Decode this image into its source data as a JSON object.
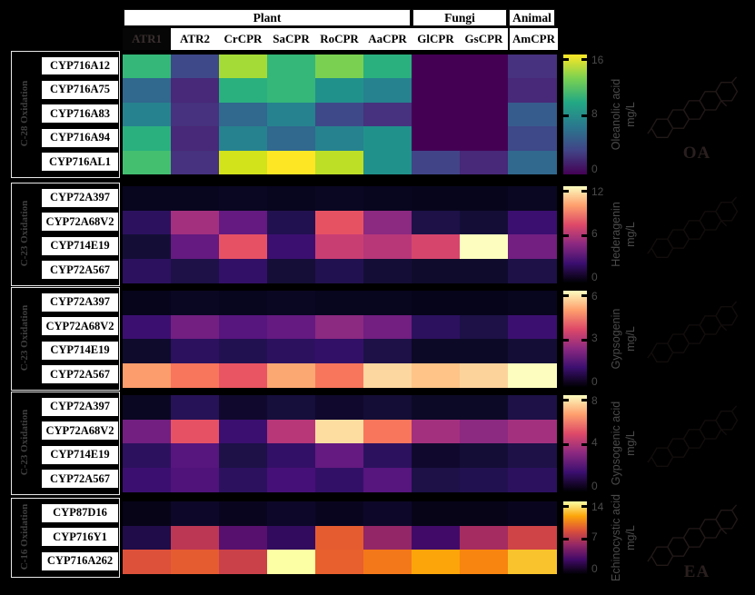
{
  "figure": {
    "header": {
      "groups": [
        {
          "label": "Plant",
          "span": 6
        },
        {
          "label": "Fungi",
          "span": 2
        },
        {
          "label": "Animal",
          "span": 1
        }
      ],
      "columns": [
        "ATR1",
        "ATR2",
        "CrCPR",
        "SaCPR",
        "RoCPR",
        "AaCPR",
        "GlCPR",
        "GsCPR",
        "AmCPR"
      ],
      "highlighted_column": "ATR1"
    },
    "colormap_gradients": {
      "viridis": [
        "#fde725",
        "#7ad151",
        "#22a884",
        "#2a788e",
        "#414487",
        "#440154"
      ],
      "magma": [
        "#fcfdbf",
        "#fe9f6d",
        "#de4968",
        "#8c2981",
        "#3b0f70",
        "#000004"
      ],
      "inferno": [
        "#fcffa4",
        "#fca50a",
        "#dd513a",
        "#932667",
        "#420a68",
        "#000004"
      ]
    }
  },
  "chart_data": [
    {
      "type": "heatmap",
      "oxidation_label": "C-28 Oxidation",
      "product": "Oleanolic acid",
      "unit": "mg/L",
      "colormap": "viridis",
      "scale_min": 0,
      "scale_max": 16,
      "ticks": [
        "16",
        "8",
        "0"
      ],
      "structure_label": "OA",
      "columns": [
        "ATR1",
        "ATR2",
        "CrCPR",
        "SaCPR",
        "RoCPR",
        "AaCPR",
        "GlCPR",
        "GsCPR",
        "AmCPR"
      ],
      "rows": [
        "CYP716A12",
        "CYP716A75",
        "CYP716A83",
        "CYP716A94",
        "CYP716AL1"
      ],
      "values": [
        [
          10,
          3.2,
          13.3,
          10,
          12,
          9.3,
          0.2,
          0.2,
          2
        ],
        [
          4.8,
          1.6,
          9.3,
          10,
          8,
          6.4,
          0.2,
          0.2,
          1.6
        ],
        [
          6.4,
          2,
          4.8,
          6.4,
          3.2,
          2,
          0.2,
          0.2,
          4.3
        ],
        [
          9.3,
          1.6,
          6.4,
          4.8,
          6.4,
          8,
          0.2,
          0.2,
          3.2
        ],
        [
          10.7,
          2,
          14.4,
          16,
          14,
          8,
          2.8,
          1.6,
          4.8
        ]
      ],
      "cell_colors": [
        [
          "#35b779",
          "#3e4989",
          "#a5db36",
          "#35b779",
          "#7ad151",
          "#2ab07f",
          "#440154",
          "#440154",
          "#46327e"
        ],
        [
          "#31688e",
          "#482878",
          "#2ab07f",
          "#35b779",
          "#21918c",
          "#26828e",
          "#440154",
          "#440154",
          "#482878"
        ],
        [
          "#26828e",
          "#46327e",
          "#31688e",
          "#26828e",
          "#3e4989",
          "#46327e",
          "#440154",
          "#440154",
          "#365c8d"
        ],
        [
          "#2ab07f",
          "#482878",
          "#26828e",
          "#31688e",
          "#26828e",
          "#21918c",
          "#440154",
          "#440154",
          "#3e4989"
        ],
        [
          "#44bf70",
          "#46327e",
          "#d2e21b",
          "#fde725",
          "#bddf26",
          "#21918c",
          "#414487",
          "#482878",
          "#31688e"
        ]
      ]
    },
    {
      "type": "heatmap",
      "oxidation_label": "C-23 Oxidation",
      "product": "Hederagenin",
      "unit": "mg/L",
      "colormap": "magma",
      "scale_min": 0,
      "scale_max": 12,
      "ticks": [
        "12",
        "6",
        "0"
      ],
      "structure_label": "",
      "columns": [
        "ATR1",
        "ATR2",
        "CrCPR",
        "SaCPR",
        "RoCPR",
        "AaCPR",
        "GlCPR",
        "GsCPR",
        "AmCPR"
      ],
      "rows": [
        "CYP72A397",
        "CYP72A68V2",
        "CYP714E19",
        "CYP72A567"
      ],
      "values": [
        [
          0.3,
          0.3,
          0.4,
          0.3,
          0.4,
          0.3,
          0.2,
          0.2,
          0.4
        ],
        [
          2,
          6.2,
          4,
          1.6,
          7.9,
          5.4,
          1.4,
          1.1,
          2.6
        ],
        [
          1.1,
          4,
          7.8,
          2.6,
          6.8,
          6.6,
          7.3,
          12,
          4.6
        ],
        [
          2,
          1.4,
          2.3,
          1.1,
          1.6,
          1.1,
          0.7,
          0.7,
          1.4
        ]
      ],
      "cell_colors": [
        [
          "#08051f",
          "#08051f",
          "#0a0722",
          "#08051f",
          "#0a0722",
          "#08051f",
          "#07051c",
          "#07051c",
          "#0a0722"
        ],
        [
          "#2c115f",
          "#a3307e",
          "#641a80",
          "#221150",
          "#e75263",
          "#8c2981",
          "#1d1147",
          "#140e36",
          "#3b0f70"
        ],
        [
          "#140e36",
          "#641a80",
          "#e65164",
          "#3b0f70",
          "#c83e73",
          "#b73779",
          "#d6456c",
          "#fcfdbf",
          "#721f81"
        ],
        [
          "#2c115f",
          "#1d1147",
          "#331067",
          "#150e37",
          "#221150",
          "#140e36",
          "#0e0b2c",
          "#0e0b2c",
          "#1d1147"
        ]
      ]
    },
    {
      "type": "heatmap",
      "oxidation_label": "C-23 Oxidation",
      "product": "Gypsogenin",
      "unit": "mg/L",
      "colormap": "magma",
      "scale_min": 0,
      "scale_max": 6,
      "ticks": [
        "6",
        "3",
        "0"
      ],
      "structure_label": "",
      "columns": [
        "ATR1",
        "ATR2",
        "CrCPR",
        "SaCPR",
        "RoCPR",
        "AaCPR",
        "GlCPR",
        "GsCPR",
        "AmCPR"
      ],
      "rows": [
        "CYP72A397",
        "CYP72A68V2",
        "CYP714E19",
        "CYP72A567"
      ],
      "values": [
        [
          0.1,
          0.2,
          0.1,
          0.2,
          0.1,
          0.1,
          0.1,
          0.1,
          0.1
        ],
        [
          1.3,
          2.3,
          1.8,
          2,
          2.7,
          2.3,
          1,
          0.7,
          1.3
        ],
        [
          0.4,
          1,
          0.8,
          1,
          1.1,
          0.7,
          0.3,
          0.3,
          0.5
        ],
        [
          4.7,
          4.3,
          4,
          4.9,
          4.3,
          5.3,
          5.1,
          5.3,
          6
        ]
      ],
      "cell_colors": [
        [
          "#07051c",
          "#0a0722",
          "#08051f",
          "#0a0722",
          "#08051f",
          "#08051f",
          "#06041a",
          "#06041a",
          "#08051f"
        ],
        [
          "#3b0f70",
          "#721f81",
          "#57157e",
          "#641a80",
          "#8c2981",
          "#721f81",
          "#2c115f",
          "#1d1147",
          "#3b0f70"
        ],
        [
          "#0e0b2c",
          "#2c115f",
          "#221150",
          "#2c115f",
          "#331067",
          "#1d1147",
          "#0c0926",
          "#0c0926",
          "#140e36"
        ],
        [
          "#fb9d6c",
          "#f8765c",
          "#e95562",
          "#fba873",
          "#f8765c",
          "#fdd7a0",
          "#fec488",
          "#fdd39c",
          "#fcfdbf"
        ]
      ]
    },
    {
      "type": "heatmap",
      "oxidation_label": "C-23 Oxidation",
      "product": "Gypsogenic acid",
      "unit": "mg/L",
      "colormap": "magma",
      "scale_min": 0,
      "scale_max": 8,
      "ticks": [
        "8",
        "4",
        "0"
      ],
      "structure_label": "",
      "columns": [
        "ATR1",
        "ATR2",
        "CrCPR",
        "SaCPR",
        "RoCPR",
        "AaCPR",
        "GlCPR",
        "GsCPR",
        "AmCPR"
      ],
      "rows": [
        "CYP72A397",
        "CYP72A68V2",
        "CYP714E19",
        "CYP72A567"
      ],
      "values": [
        [
          0.2,
          1.2,
          0.5,
          0.8,
          0.5,
          0.7,
          0.3,
          0.3,
          0.9
        ],
        [
          3,
          5.2,
          1.8,
          4.4,
          7.2,
          5.7,
          4.2,
          3.6,
          4.2
        ],
        [
          1.4,
          2.4,
          1,
          1.5,
          2.6,
          1.4,
          0.5,
          0.7,
          1
        ],
        [
          1.8,
          2.2,
          1.4,
          2,
          1.5,
          2.4,
          1,
          1,
          1.4
        ]
      ],
      "cell_colors": [
        [
          "#0a0722",
          "#261257",
          "#10092d",
          "#160f3c",
          "#10092d",
          "#140e36",
          "#0c0926",
          "#0c0926",
          "#1d1147"
        ],
        [
          "#721f81",
          "#e65164",
          "#3b0f70",
          "#b73779",
          "#fddea0",
          "#f8765c",
          "#a3307e",
          "#8c2981",
          "#a3307e"
        ],
        [
          "#2c115f",
          "#57157e",
          "#1d1147",
          "#331067",
          "#641a80",
          "#2c115f",
          "#10092d",
          "#140e36",
          "#1d1147"
        ],
        [
          "#3b0f70",
          "#4f137a",
          "#2c115f",
          "#451077",
          "#331067",
          "#57157e",
          "#1d1147",
          "#221150",
          "#2c115f"
        ]
      ]
    },
    {
      "type": "heatmap",
      "oxidation_label": "C-16 Oxidation",
      "product": "Echinocystic acid",
      "unit": "mg/L",
      "colormap": "inferno",
      "scale_min": 0,
      "scale_max": 14,
      "ticks": [
        "14",
        "7",
        "0"
      ],
      "structure_label": "EA",
      "columns": [
        "ATR1",
        "ATR2",
        "CrCPR",
        "SaCPR",
        "RoCPR",
        "AaCPR",
        "GlCPR",
        "GsCPR",
        "AmCPR"
      ],
      "rows": [
        "CYP87D16",
        "CYP716Y1",
        "CYP716A262"
      ],
      "values": [
        [
          0.2,
          0.3,
          0.2,
          0.3,
          0.2,
          0.3,
          0.2,
          0.2,
          0.2
        ],
        [
          1.8,
          7,
          3.5,
          2.4,
          9,
          5.6,
          2.8,
          6.3,
          7.7
        ],
        [
          8.4,
          9,
          7.4,
          14,
          9.1,
          9.8,
          11.2,
          10.4,
          12.2
        ]
      ],
      "cell_colors": [
        [
          "#070418",
          "#0d0829",
          "#0a051f",
          "#0d0829",
          "#0a051f",
          "#0d0829",
          "#070418",
          "#070418",
          "#0a051f"
        ],
        [
          "#1f0c48",
          "#bc3754",
          "#57106e",
          "#320a5e",
          "#e55c30",
          "#932667",
          "#420a68",
          "#a52c60",
          "#cf4446"
        ],
        [
          "#dd513a",
          "#e55c30",
          "#cb4149",
          "#fcffa4",
          "#e8602d",
          "#f37819",
          "#fca50a",
          "#f8850f",
          "#f8c32c"
        ]
      ]
    }
  ]
}
